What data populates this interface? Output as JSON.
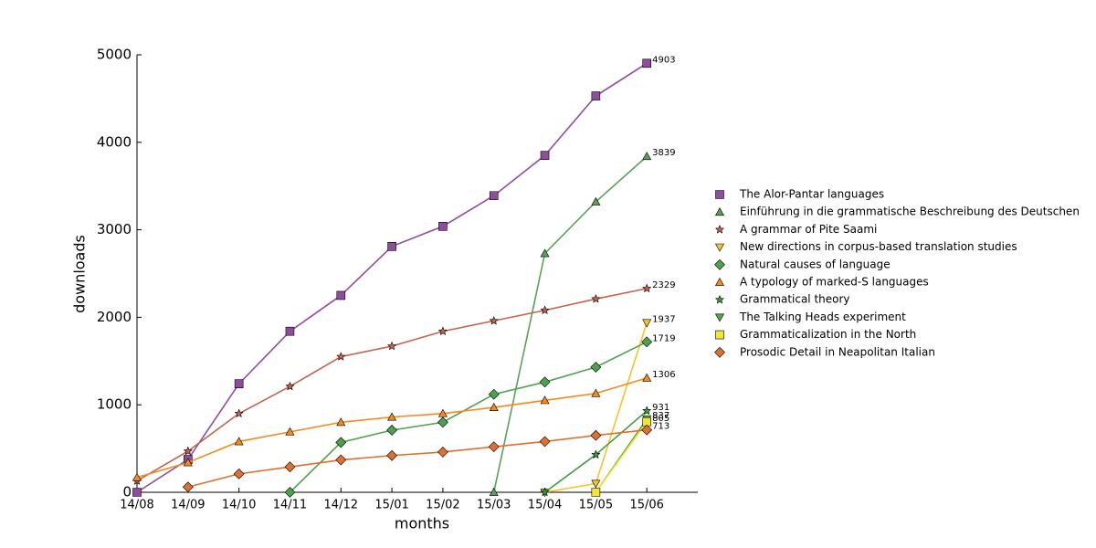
{
  "chart_data": {
    "type": "line",
    "xlabel": "months",
    "ylabel": "downloads",
    "categories": [
      "14/08",
      "14/09",
      "14/10",
      "14/11",
      "14/12",
      "15/01",
      "15/02",
      "15/03",
      "15/04",
      "15/05",
      "15/06"
    ],
    "ylim": [
      0,
      5000
    ],
    "yticks": [
      0,
      1000,
      2000,
      3000,
      4000,
      5000
    ],
    "grid": false,
    "legend": "right",
    "series": [
      {
        "name": "The Alor-Pantar languages",
        "color": "#8d4e9c",
        "marker": "square",
        "values": [
          0,
          375,
          1240,
          1840,
          2250,
          2810,
          3040,
          3390,
          3850,
          4530,
          4903
        ]
      },
      {
        "name": "Einführung in die grammatische Beschreibung des Deutschen",
        "color": "#5aa05a",
        "marker": "triangle-up",
        "values": [
          null,
          null,
          null,
          null,
          null,
          null,
          null,
          0,
          2730,
          3320,
          3839
        ]
      },
      {
        "name": "A grammar of Pite Saami",
        "color": "#c4644e",
        "marker": "star",
        "values": [
          130,
          470,
          900,
          1210,
          1550,
          1670,
          1840,
          1960,
          2080,
          2210,
          2329
        ]
      },
      {
        "name": "New directions in corpus-based translation studies",
        "color": "#f5c32a",
        "marker": "triangle-down",
        "values": [
          null,
          null,
          null,
          null,
          null,
          null,
          null,
          null,
          0,
          100,
          1937
        ]
      },
      {
        "name": "Natural causes of language",
        "color": "#4ea24e",
        "marker": "diamond",
        "values": [
          null,
          null,
          null,
          0,
          570,
          710,
          800,
          1120,
          1260,
          1430,
          1719
        ]
      },
      {
        "name": "A typology of marked-S languages",
        "color": "#f28a1c",
        "marker": "triangle-up",
        "values": [
          170,
          340,
          580,
          690,
          800,
          860,
          900,
          970,
          1050,
          1130,
          1306
        ]
      },
      {
        "name": "Grammatical theory",
        "color": "#3e9a3e",
        "marker": "star",
        "values": [
          null,
          null,
          null,
          null,
          null,
          null,
          null,
          null,
          0,
          430,
          931
        ]
      },
      {
        "name": "The Talking Heads experiment",
        "color": "#55aa44",
        "marker": "triangle-down",
        "values": [
          null,
          null,
          null,
          null,
          null,
          null,
          null,
          null,
          null,
          0,
          837
        ]
      },
      {
        "name": "Grammaticalization in the North",
        "color": "#f0e830",
        "marker": "square",
        "values": [
          null,
          null,
          null,
          null,
          null,
          null,
          null,
          null,
          null,
          0,
          805
        ]
      },
      {
        "name": "Prosodic Detail in Neapolitan Italian",
        "color": "#e07030",
        "marker": "diamond",
        "values": [
          null,
          60,
          210,
          290,
          370,
          420,
          460,
          520,
          580,
          650,
          713
        ]
      }
    ]
  }
}
